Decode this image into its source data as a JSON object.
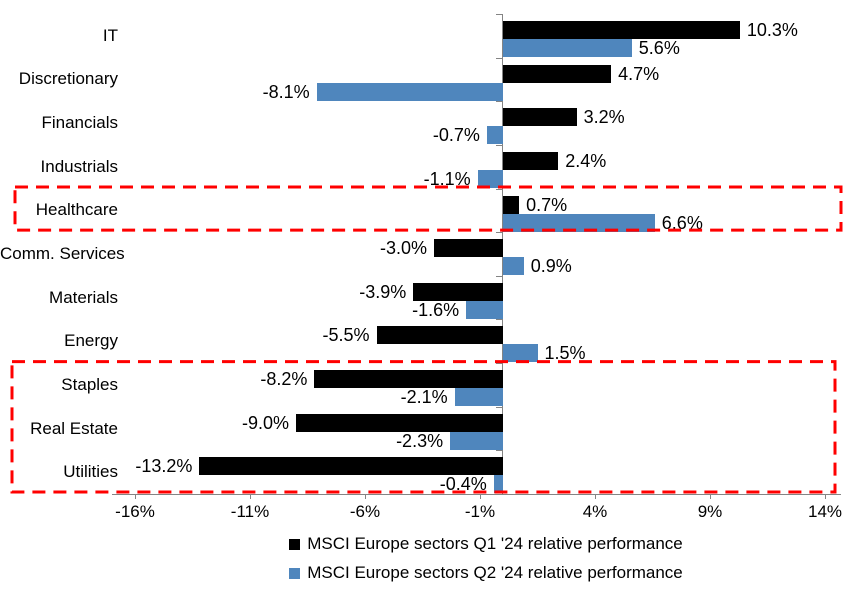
{
  "chart_data": {
    "type": "bar",
    "orientation": "horizontal",
    "title": "",
    "categories": [
      "IT",
      "Discretionary",
      "Financials",
      "Industrials",
      "Healthcare",
      "Comm. Services",
      "Materials",
      "Energy",
      "Staples",
      "Real Estate",
      "Utilities"
    ],
    "series": [
      {
        "name": "MSCI Europe sectors Q1 '24 relative performance",
        "color": "#000000",
        "values": [
          10.3,
          4.7,
          3.2,
          2.4,
          0.7,
          -3.0,
          -3.9,
          -5.5,
          -8.2,
          -9.0,
          -13.2
        ]
      },
      {
        "name": "MSCI Europe sectors Q2 '24 relative performance",
        "color": "#4F86BD",
        "values": [
          5.6,
          -8.1,
          -0.7,
          -1.1,
          6.6,
          0.9,
          -1.6,
          1.5,
          -2.1,
          -2.3,
          -0.4
        ]
      }
    ],
    "value_label_format": "{value}%",
    "x_ticks": [
      -16,
      -11,
      -6,
      -1,
      4,
      9,
      14
    ],
    "x_tick_labels": [
      "-16%",
      "-11%",
      "-6%",
      "-1%",
      "4%",
      "9%",
      "14%"
    ],
    "xlim": [
      -17,
      14.7
    ],
    "grid": false,
    "axis_color": "#848484",
    "legend_position": "bottom",
    "annotations": [
      {
        "type": "highlight-box",
        "color": "#FF0000",
        "style": "dashed",
        "categories": [
          "Healthcare"
        ]
      },
      {
        "type": "highlight-box",
        "color": "#FF0000",
        "style": "dashed",
        "categories": [
          "Staples",
          "Real Estate",
          "Utilities"
        ]
      }
    ]
  }
}
